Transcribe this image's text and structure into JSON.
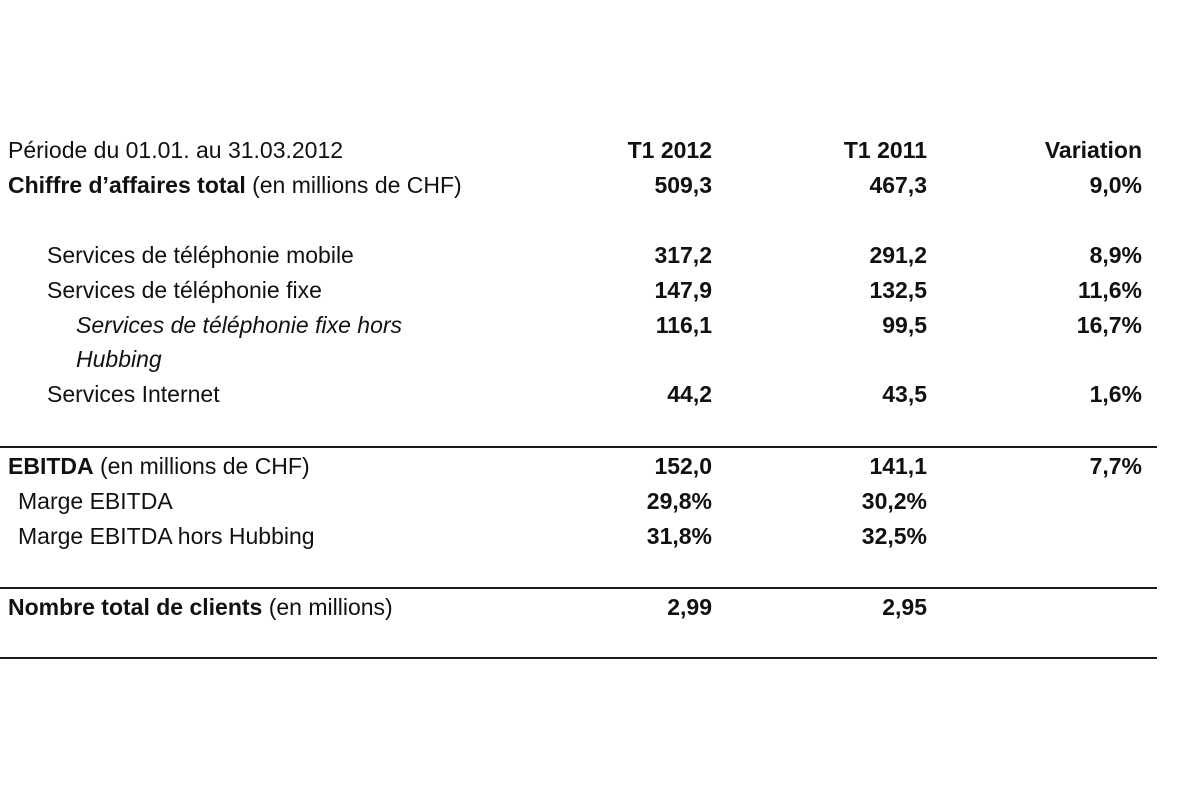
{
  "header": {
    "period": "Période du 01.01. au 31.03.2012",
    "col1": "T1 2012",
    "col2": "T1 2011",
    "col3": "Variation"
  },
  "revenue": {
    "label_bold": "Chiffre d’affaires total",
    "label_rest": " (en millions de CHF)",
    "v1": "509,3",
    "v2": "467,3",
    "v3": "9,0%"
  },
  "mobile": {
    "label": "Services de téléphonie mobile",
    "v1": "317,2",
    "v2": "291,2",
    "v3": "8,9%"
  },
  "fixed": {
    "label": "Services de téléphonie fixe",
    "v1": "147,9",
    "v2": "132,5",
    "v3": "11,6%"
  },
  "fixed_ex_hubbing": {
    "label": "Services de téléphonie fixe hors Hubbing",
    "v1": "116,1",
    "v2": "99,5",
    "v3": "16,7%"
  },
  "internet": {
    "label": "Services Internet",
    "v1": "44,2",
    "v2": "43,5",
    "v3": "1,6%"
  },
  "ebitda": {
    "label_bold": "EBITDA",
    "label_rest": " (en millions de CHF)",
    "v1": "152,0",
    "v2": "141,1",
    "v3": "7,7%"
  },
  "ebitda_margin": {
    "label": "Marge EBITDA",
    "v1": "29,8%",
    "v2": "30,2%"
  },
  "ebitda_margin_ex": {
    "label": "Marge EBITDA hors Hubbing",
    "v1": "31,8%",
    "v2": "32,5%"
  },
  "customers": {
    "label_bold": "Nombre total de clients",
    "label_rest": " (en millions)",
    "v1": "2,99",
    "v2": "2,95"
  }
}
